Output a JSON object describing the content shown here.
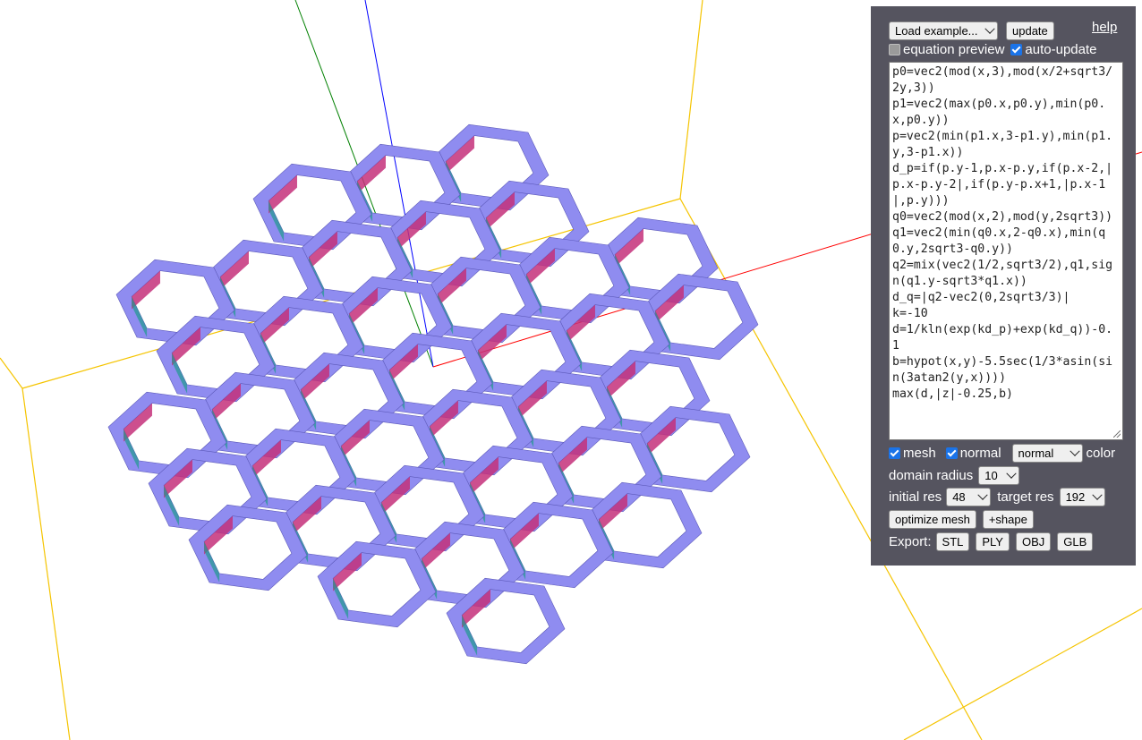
{
  "toolbar": {
    "load_example": "Load example...",
    "update": "update",
    "help": "help"
  },
  "options": {
    "equation_preview": "equation preview",
    "equation_preview_checked": false,
    "auto_update": "auto-update",
    "auto_update_checked": true
  },
  "editor": {
    "lines": [
      "p0=vec2(mod(x,3),mod(x/2+sqrt3/2y,3))",
      "p1=vec2(max(p0.x,p0.y),min(p0.x,p0.y))",
      "p=vec2(min(p1.x,3-p1.y),min(p1.y,3-p1.x))",
      "d_p=if(p.y-1,p.x-p.y,if(p.x-2,|p.x-p.y-2|,if(p.y-p.x+1,|p.x-1|,p.y)))",
      "q0=vec2(mod(x,2),mod(y,2sqrt3))",
      "q1=vec2(min(q0.x,2-q0.x),min(q0.y,2sqrt3-q0.y))",
      "q2=mix(vec2(1/2,sqrt3/2),q1,sign(q1.y-sqrt3*q1.x))",
      "d_q=|q2-vec2(0,2sqrt3/3)|",
      "k=-10",
      "d=1/kln(exp(kd_p)+exp(kd_q))-0.1",
      "b=hypot(x,y)-5.5sec(1/3*asin(sin(3atan2(y,x))))",
      "max(d,|z|-0.25,b)"
    ]
  },
  "display": {
    "mesh": "mesh",
    "mesh_checked": true,
    "normal": "normal",
    "normal_checked": true,
    "color_mode": "normal",
    "color": "color"
  },
  "params": {
    "domain_radius_label": "domain radius",
    "domain_radius": "10",
    "initial_res_label": "initial res",
    "initial_res": "48",
    "target_res_label": "target res",
    "target_res": "192"
  },
  "actions": {
    "optimize_mesh": "optimize mesh",
    "add_shape": "+shape"
  },
  "export": {
    "label": "Export:",
    "formats": [
      "STL",
      "PLY",
      "OBJ",
      "GLB"
    ]
  },
  "colors": {
    "panel_bg": "#55545f",
    "mesh_top": "#8f8cf0",
    "mesh_side_a": "#c4307a",
    "mesh_side_b": "#1f9a8f",
    "axis_x": "#ff0000",
    "axis_y": "#008000",
    "axis_z": "#0000ff",
    "bbox": "#f5c400"
  }
}
